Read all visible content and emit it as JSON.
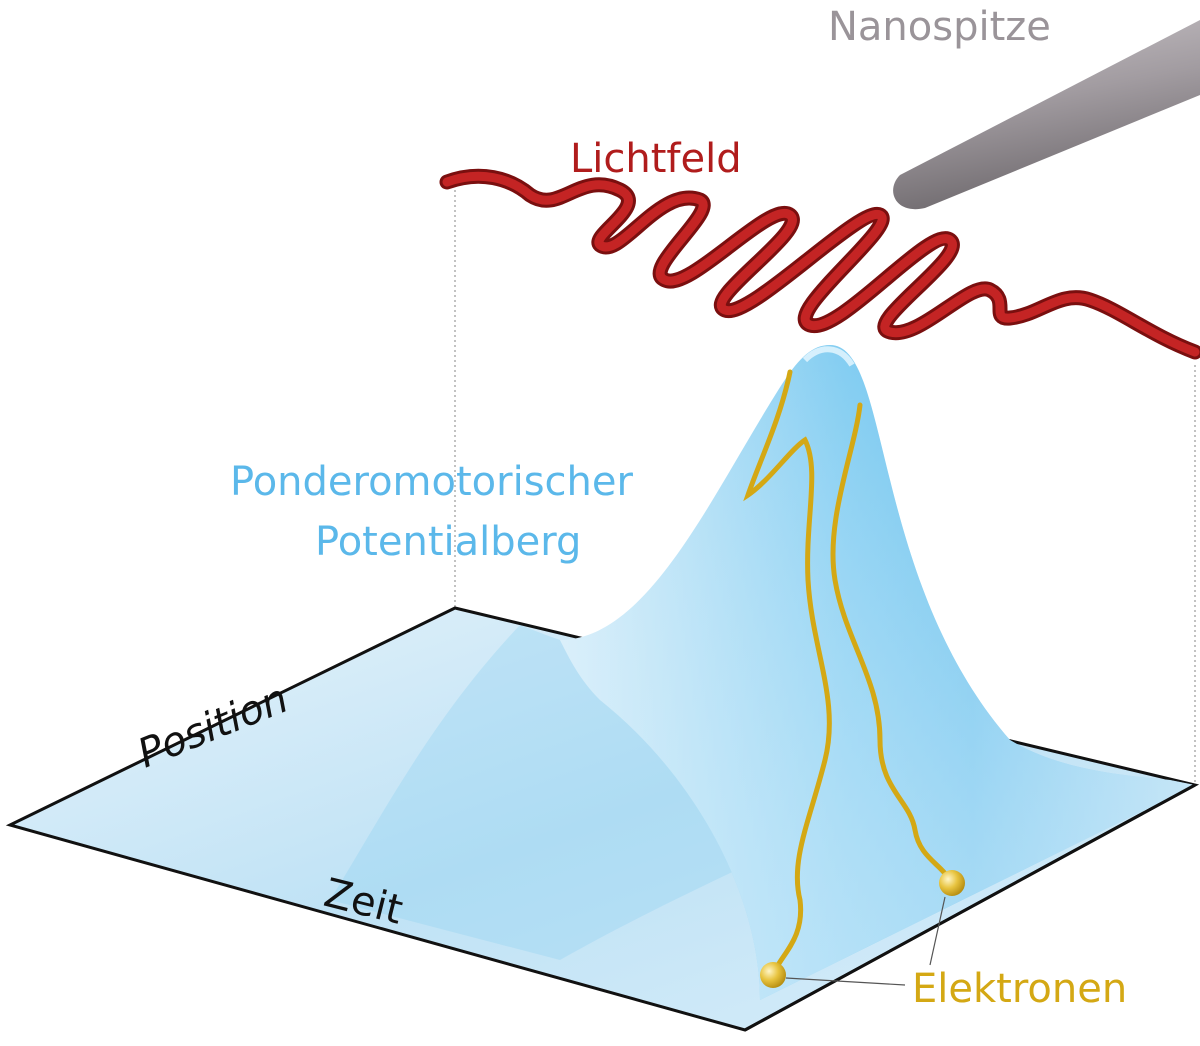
{
  "labels": {
    "tip": "Nanospitze",
    "light_field": "Lichtfeld",
    "potential_line1": "Ponderomotorischer",
    "potential_line2": "Potentialberg",
    "axis_position": "Position",
    "axis_time": "Zeit",
    "electrons": "Elektronen"
  },
  "colors": {
    "tip": "#9a9499",
    "light_field": "#b01c1c",
    "potential": "#5bb8ea",
    "electrons": "#d4a814",
    "axes": "#111111"
  }
}
